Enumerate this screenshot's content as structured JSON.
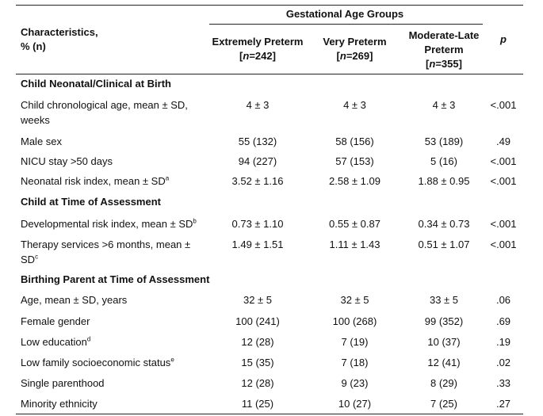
{
  "header": {
    "group_title": "Gestational Age Groups",
    "char_line1": "Characteristics,",
    "char_line2": "% (n)",
    "cols": [
      {
        "line1": "Extremely Preterm",
        "n_prefix": "[",
        "n_var": "n",
        "n_val": "=242]"
      },
      {
        "line1": "Very Preterm",
        "n_prefix": "[",
        "n_var": "n",
        "n_val": "=269]"
      },
      {
        "line1": "Moderate-Late",
        "line2": "Preterm",
        "n_prefix": "[",
        "n_var": "n",
        "n_val": "=355]"
      }
    ],
    "p_label": "p"
  },
  "sections": [
    {
      "title": "Child Neonatal/Clinical at Birth"
    },
    {
      "title": "Child at Time of Assessment"
    },
    {
      "title": "Birthing Parent at Time of Assessment"
    }
  ],
  "rows": [
    {
      "label": "Child chronological age, mean ± SD,",
      "label2": "weeks",
      "v1": "4 ± 3",
      "v2": "4 ± 3",
      "v3": "4 ± 3",
      "p": "<.001"
    },
    {
      "label": "Male sex",
      "v1": "55 (132)",
      "v2": "58 (156)",
      "v3": "53 (189)",
      "p": ".49"
    },
    {
      "label": "NICU stay >50 days",
      "v1": "94 (227)",
      "v2": "57 (153)",
      "v3": "5 (16)",
      "p": "<.001"
    },
    {
      "label": "Neonatal risk index, mean ± SD",
      "sup": "a",
      "v1": "3.52 ± 1.16",
      "v2": "2.58 ± 1.09",
      "v3": "1.88 ± 0.95",
      "p": "<.001"
    },
    {
      "label": "Developmental risk index, mean ± SD",
      "sup": "b",
      "v1": "0.73 ± 1.10",
      "v2": "0.55 ± 0.87",
      "v3": "0.34 ± 0.73",
      "p": "<.001"
    },
    {
      "label": "Therapy services >6 months, mean ±",
      "label2": "SD",
      "sup": "c",
      "v1": "1.49 ± 1.51",
      "v2": "1.11 ± 1.43",
      "v3": "0.51 ± 1.07",
      "p": "<.001"
    },
    {
      "label": "Age, mean ± SD, years",
      "v1": "32 ± 5",
      "v2": "32 ± 5",
      "v3": "33 ± 5",
      "p": ".06"
    },
    {
      "label": "Female gender",
      "v1": "100 (241)",
      "v2": "100 (268)",
      "v3": "99 (352)",
      "p": ".69"
    },
    {
      "label": "Low education",
      "sup": "d",
      "v1": "12 (28)",
      "v2": "7 (19)",
      "v3": "10 (37)",
      "p": ".19"
    },
    {
      "label": "Low family socioeconomic status",
      "sup": "e",
      "v1": "15 (35)",
      "v2": "7 (18)",
      "v3": "12 (41)",
      "p": ".02"
    },
    {
      "label": "Single parenthood",
      "v1": "12 (28)",
      "v2": "9 (23)",
      "v3": "8 (29)",
      "p": ".33"
    },
    {
      "label": "Minority ethnicity",
      "v1": "11 (25)",
      "v2": "10 (27)",
      "v3": "7 (25)",
      "p": ".27"
    }
  ]
}
